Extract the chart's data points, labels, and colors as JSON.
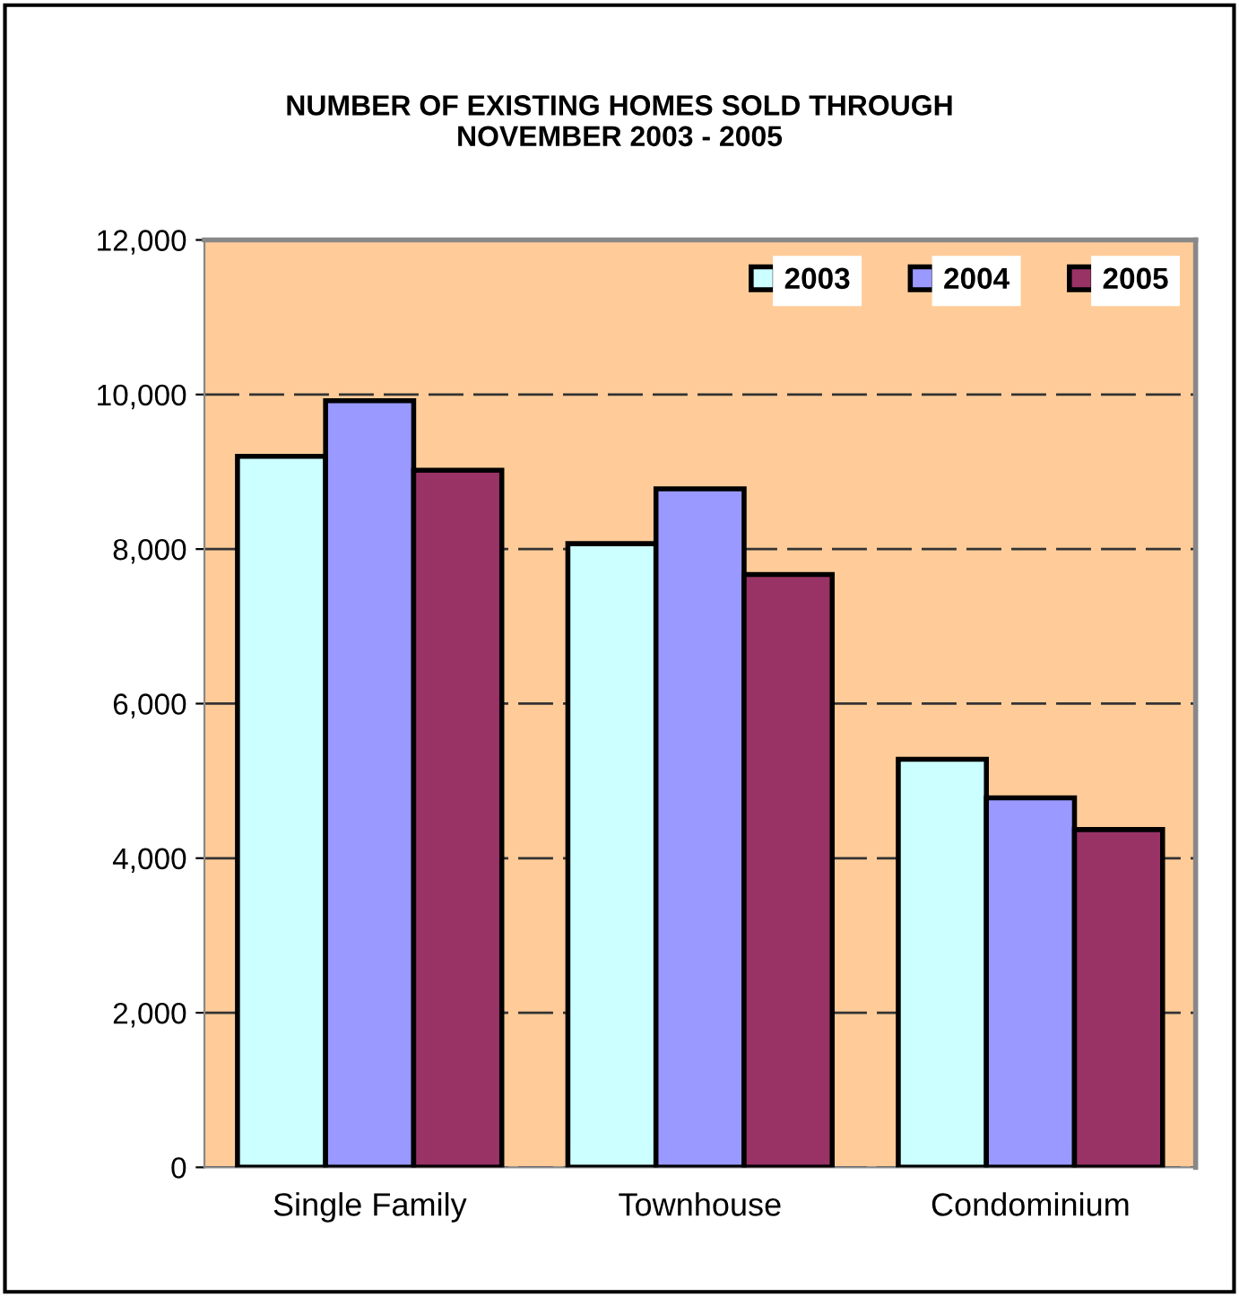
{
  "chart_data": {
    "type": "bar",
    "title": "NUMBER OF EXISTING HOMES SOLD THROUGH\nNOVEMBER 2003 - 2005",
    "categories": [
      "Single Family",
      "Townhouse",
      "Condominium"
    ],
    "series": [
      {
        "name": "2003",
        "color": "#ccffff",
        "values": [
          9200,
          8070,
          5280
        ]
      },
      {
        "name": "2004",
        "color": "#9999ff",
        "values": [
          9920,
          8780,
          4780
        ]
      },
      {
        "name": "2005",
        "color": "#993366",
        "values": [
          9020,
          7670,
          4370
        ]
      }
    ],
    "ylim": [
      0,
      12000
    ],
    "yticks": [
      {
        "value": 0,
        "label": "0"
      },
      {
        "value": 2000,
        "label": "2,000"
      },
      {
        "value": 4000,
        "label": "4,000"
      },
      {
        "value": 6000,
        "label": "6,000"
      },
      {
        "value": 8000,
        "label": "8,000"
      },
      {
        "value": 10000,
        "label": "10,000"
      },
      {
        "value": 12000,
        "label": "12,000"
      }
    ],
    "grid": "y",
    "legend": "top right"
  }
}
